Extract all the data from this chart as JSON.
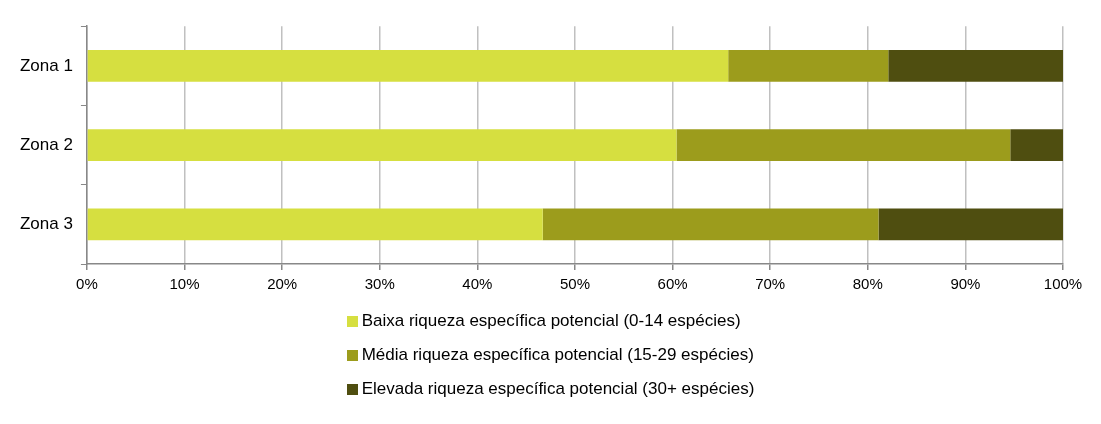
{
  "chart_data": {
    "type": "bar",
    "orientation": "horizontal",
    "stacked": true,
    "categories": [
      "Zona 1",
      "Zona 2",
      "Zona 3"
    ],
    "series": [
      {
        "name": "Baixa riqueza específica potencial (0-14 espécies)",
        "color": "#d6df40",
        "values": [
          65.7,
          60.4,
          46.7
        ]
      },
      {
        "name": "Média riqueza específica potencial (15-29 espécies)",
        "color": "#9c9c1c",
        "values": [
          16.4,
          34.2,
          34.4
        ]
      },
      {
        "name": "Elevada riqueza específica potencial (30+ espécies)",
        "color": "#4f4e10",
        "values": [
          17.9,
          5.4,
          18.9
        ]
      }
    ],
    "xlim": [
      0,
      100
    ],
    "xticks": [
      {
        "value": 0,
        "label": "0%"
      },
      {
        "value": 10,
        "label": "10%"
      },
      {
        "value": 20,
        "label": "20%"
      },
      {
        "value": 30,
        "label": "30%"
      },
      {
        "value": 40,
        "label": "40%"
      },
      {
        "value": 50,
        "label": "50%"
      },
      {
        "value": 60,
        "label": "60%"
      },
      {
        "value": 70,
        "label": "70%"
      },
      {
        "value": 80,
        "label": "80%"
      },
      {
        "value": 90,
        "label": "90%"
      },
      {
        "value": 100,
        "label": "100%"
      }
    ],
    "grid": "x",
    "legend": "bottom"
  }
}
